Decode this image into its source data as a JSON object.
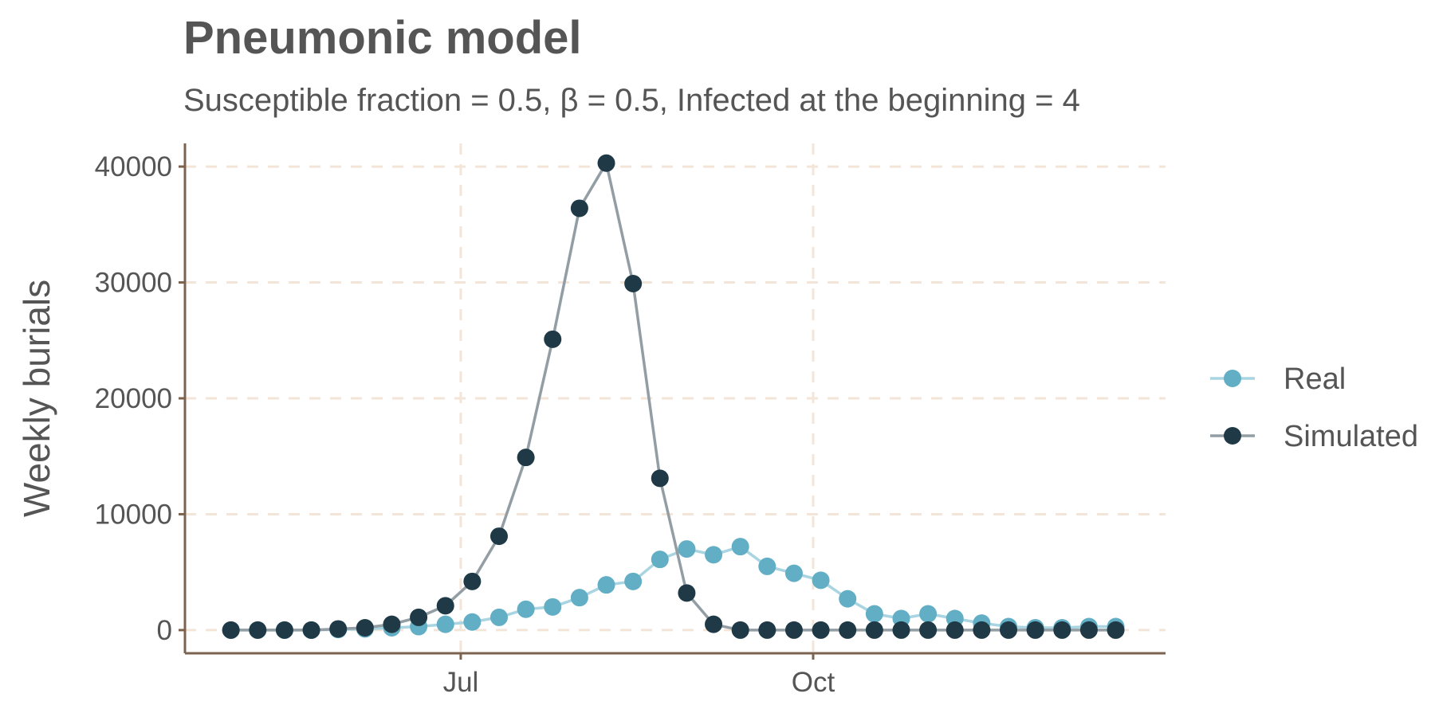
{
  "chart_data": {
    "type": "line",
    "title": "Pneumonic model",
    "subtitle": "Susceptible fraction = 0.5, β = 0.5, Infected at the beginning = 4",
    "xlabel": "",
    "ylabel": "Weekly burials",
    "x_ticks": [
      {
        "label": "Jul",
        "date": "1665-07-01"
      },
      {
        "label": "Oct",
        "date": "1665-10-01"
      }
    ],
    "x_range": [
      "1665-04-20",
      "1666-01-01"
    ],
    "y_ticks": [
      0,
      10000,
      20000,
      30000,
      40000
    ],
    "ylim": [
      -2000,
      42000
    ],
    "grid": "major, dashed",
    "legend_position": "right",
    "dates": [
      "1665-05-02",
      "1665-05-09",
      "1665-05-16",
      "1665-05-23",
      "1665-05-30",
      "1665-06-06",
      "1665-06-13",
      "1665-06-20",
      "1665-06-27",
      "1665-07-04",
      "1665-07-11",
      "1665-07-18",
      "1665-07-25",
      "1665-08-01",
      "1665-08-08",
      "1665-08-15",
      "1665-08-22",
      "1665-08-29",
      "1665-09-05",
      "1665-09-12",
      "1665-09-19",
      "1665-09-26",
      "1665-10-03",
      "1665-10-10",
      "1665-10-17",
      "1665-10-24",
      "1665-10-31",
      "1665-11-07",
      "1665-11-14",
      "1665-11-21",
      "1665-11-28",
      "1665-12-05",
      "1665-12-12",
      "1665-12-19"
    ],
    "series": [
      {
        "name": "Real",
        "color": "#62aec5",
        "line_color": "#a9d4e1",
        "values": [
          0,
          0,
          0,
          0,
          50,
          100,
          200,
          300,
          500,
          700,
          1100,
          1800,
          2000,
          2800,
          3900,
          4200,
          6100,
          7000,
          6500,
          7200,
          5500,
          4900,
          4300,
          2700,
          1400,
          1000,
          1400,
          1000,
          600,
          300,
          200,
          200,
          300,
          300
        ]
      },
      {
        "name": "Simulated",
        "color": "#1f3a46",
        "line_color": "#929ea4",
        "values": [
          0,
          0,
          0,
          0,
          100,
          200,
          500,
          1100,
          2100,
          4200,
          8100,
          14900,
          25100,
          36400,
          40300,
          29900,
          13100,
          3200,
          500,
          0,
          0,
          0,
          0,
          0,
          0,
          0,
          0,
          0,
          0,
          0,
          0,
          0,
          0,
          0
        ]
      }
    ],
    "colors": {
      "axis": "#7b6350",
      "grid": "#f3e6d9",
      "text": "#555555"
    }
  }
}
